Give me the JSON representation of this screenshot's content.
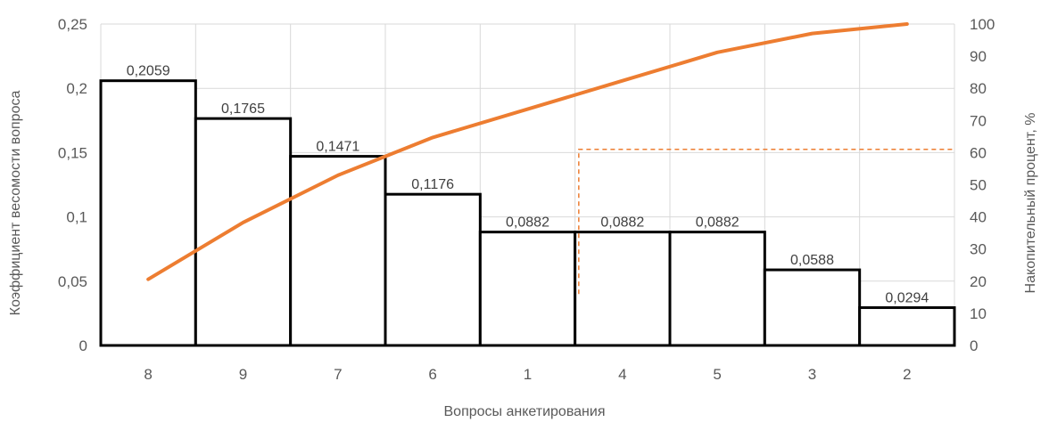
{
  "chart_data": {
    "type": "bar",
    "categories": [
      "8",
      "9",
      "7",
      "6",
      "1",
      "4",
      "5",
      "3",
      "2"
    ],
    "values": [
      0.2059,
      0.1765,
      0.1471,
      0.1176,
      0.0882,
      0.0882,
      0.0882,
      0.0588,
      0.0294
    ],
    "value_labels": [
      "0,2059",
      "0,1765",
      "0,1471",
      "0,1176",
      "0,0882",
      "0,0882",
      "0,0882",
      "0,0588",
      "0,0294"
    ],
    "cumulative_percent": [
      20.59,
      38.24,
      52.94,
      64.71,
      73.53,
      82.35,
      91.18,
      97.06,
      100
    ],
    "xlabel": "Вопросы анкетирования",
    "ylabel": "Коэффициент весомости вопроса",
    "y2label": "Накопительный процент, %",
    "ylim": [
      0,
      0.25
    ],
    "y2lim": [
      0,
      100
    ],
    "y_ticks": [
      "0",
      "0,05",
      "0,1",
      "0,15",
      "0,2",
      "0,25"
    ],
    "y2_ticks": [
      "0",
      "10",
      "20",
      "30",
      "40",
      "50",
      "60",
      "70",
      "80",
      "90",
      "100"
    ],
    "reference_level_percent": 61,
    "reference_start_percent": 16,
    "grid": true,
    "colors": {
      "bar_fill": "#ffffff",
      "bar_stroke": "#000000",
      "cumulative_line": "#ed7d31",
      "grid": "#d9d9d9"
    }
  }
}
